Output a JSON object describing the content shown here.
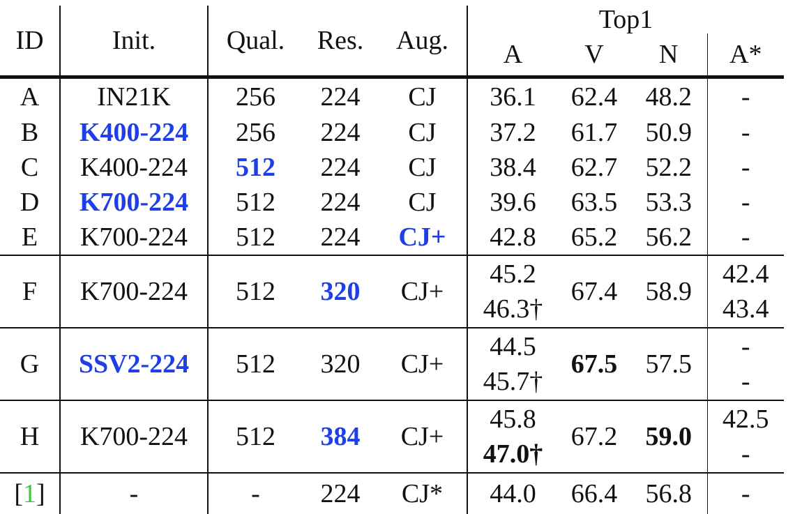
{
  "header": {
    "id": "ID",
    "init": "Init.",
    "qual": "Qual.",
    "res": "Res.",
    "aug": "Aug.",
    "top1": "Top1",
    "a": "A",
    "v": "V",
    "n": "N",
    "a_star": "A*"
  },
  "rows": [
    {
      "id": "A",
      "init": "IN21K",
      "qual": "256",
      "res": "224",
      "aug": "CJ",
      "a": "36.1",
      "v": "62.4",
      "n": "48.2",
      "a_star": "-"
    },
    {
      "id": "B",
      "init": "K400-224",
      "qual": "256",
      "res": "224",
      "aug": "CJ",
      "a": "37.2",
      "v": "61.7",
      "n": "50.9",
      "a_star": "-"
    },
    {
      "id": "C",
      "init": "K400-224",
      "qual": "512",
      "res": "224",
      "aug": "CJ",
      "a": "38.4",
      "v": "62.7",
      "n": "52.2",
      "a_star": "-"
    },
    {
      "id": "D",
      "init": "K700-224",
      "qual": "512",
      "res": "224",
      "aug": "CJ",
      "a": "39.6",
      "v": "63.5",
      "n": "53.3",
      "a_star": "-"
    },
    {
      "id": "E",
      "init": "K700-224",
      "qual": "512",
      "res": "224",
      "aug": "CJ+",
      "a": "42.8",
      "v": "65.2",
      "n": "56.2",
      "a_star": "-"
    },
    {
      "id": "F",
      "init": "K700-224",
      "qual": "512",
      "res": "320",
      "aug": "CJ+",
      "a": "45.2",
      "a2": "46.3†",
      "v": "67.4",
      "n": "58.9",
      "a_star": "42.4",
      "a_star2": "43.4"
    },
    {
      "id": "G",
      "init": "SSV2-224",
      "qual": "512",
      "res": "320",
      "aug": "CJ+",
      "a": "44.5",
      "a2": "45.7†",
      "v": "67.5",
      "n": "57.5",
      "a_star": "-",
      "a_star2": "-"
    },
    {
      "id": "H",
      "init": "K700-224",
      "qual": "512",
      "res": "384",
      "aug": "CJ+",
      "a": "45.8",
      "a2": "47.0†",
      "v": "67.2",
      "n": "59.0",
      "a_star": "42.5",
      "a_star2": "-"
    },
    {
      "id_open": "[",
      "id_ref": "1",
      "id_close": "]",
      "init": "-",
      "qual": "-",
      "res": "224",
      "aug": "CJ*",
      "a": "44.0",
      "v": "66.4",
      "n": "56.8",
      "a_star": "-"
    }
  ],
  "colors": {
    "highlight": "#1f3fe6",
    "citation": "#3ec43e",
    "text": "#111111"
  }
}
